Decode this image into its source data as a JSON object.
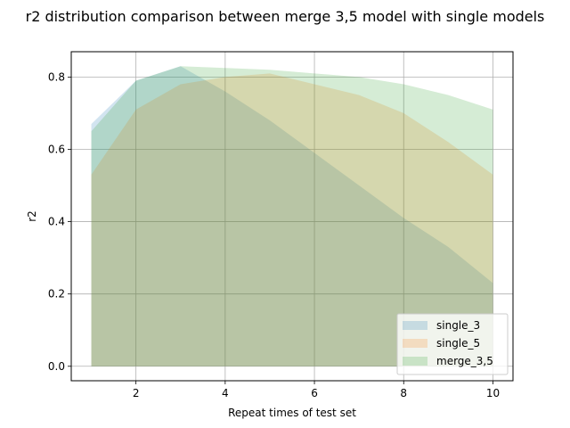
{
  "chart_data": {
    "type": "area",
    "title": "r2 distribution comparison between merge 3,5 model with single models",
    "xlabel": "Repeat times of test set",
    "ylabel": "r2",
    "xlim": [
      0.55,
      10.45
    ],
    "ylim": [
      -0.04,
      0.87
    ],
    "xticks": [
      2,
      4,
      6,
      8,
      10
    ],
    "yticks": [
      0.0,
      0.2,
      0.4,
      0.6,
      0.8
    ],
    "xtick_labels": [
      "2",
      "4",
      "6",
      "8",
      "10"
    ],
    "ytick_labels": [
      "0.0",
      "0.2",
      "0.4",
      "0.6",
      "0.8"
    ],
    "grid": true,
    "legend_position": "lower-right",
    "x": [
      1,
      2,
      3,
      4,
      5,
      6,
      7,
      8,
      9,
      10
    ],
    "series": [
      {
        "name": "single_3",
        "color": "#1f77b4",
        "lower": [
          0,
          0,
          0,
          0,
          0,
          0,
          0,
          0,
          0,
          0
        ],
        "upper": [
          0.67,
          0.79,
          0.83,
          0.76,
          0.68,
          0.59,
          0.5,
          0.41,
          0.33,
          0.23
        ]
      },
      {
        "name": "single_5",
        "color": "#ff7f0e",
        "lower": [
          0,
          0,
          0,
          0,
          0,
          0,
          0,
          0,
          0,
          0
        ],
        "upper": [
          0.53,
          0.71,
          0.78,
          0.8,
          0.81,
          0.78,
          0.75,
          0.7,
          0.62,
          0.53
        ]
      },
      {
        "name": "merge_3,5",
        "color": "#2ca02c",
        "lower": [
          0,
          0,
          0,
          0,
          0,
          0,
          0,
          0,
          0,
          0
        ],
        "upper": [
          0.65,
          0.79,
          0.83,
          0.825,
          0.82,
          0.81,
          0.8,
          0.78,
          0.75,
          0.71
        ]
      }
    ]
  }
}
